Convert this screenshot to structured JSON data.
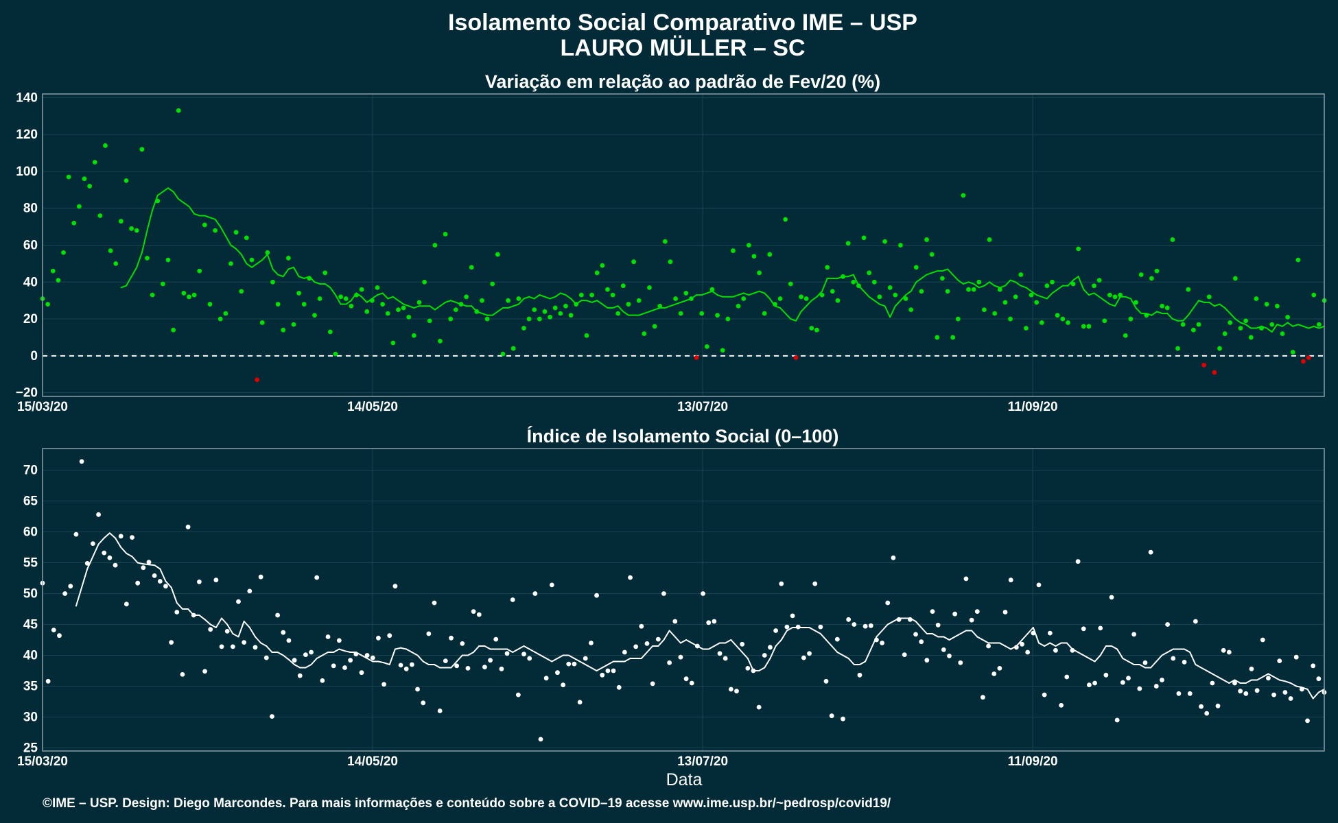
{
  "header": {
    "title_line1": "Isolamento Social Comparativo IME – USP",
    "title_line2": "LAURO MÜLLER – SC"
  },
  "footer": {
    "xlabel": "Data",
    "credit": "©IME – USP. Design: Diego Marcondes. Para mais informações e conteúdo sobre a COVID–19 acesse www.ime.usp.br/~pedrosp/covid19/"
  },
  "colors": {
    "background": "#022a37",
    "grid": "#1b4452",
    "axis": "#8aa0a8",
    "positive": "#00e000",
    "negative": "#e00000",
    "index": "#ffffff"
  },
  "chart_data": [
    {
      "type": "scatter",
      "title": "Variação em relação ao padrão de Fev/20 (%)",
      "xlabel": "",
      "ylabel": "",
      "x_start": "2020-03-15",
      "x_end": "2020-11-03",
      "x_ticks": [
        "15/03/20",
        "14/05/20",
        "13/07/20",
        "11/09/20"
      ],
      "ylim": [
        -22,
        142
      ],
      "y_ticks": [
        -20,
        0,
        20,
        40,
        60,
        80,
        100,
        120,
        140
      ],
      "reference_line": 0,
      "grid": true,
      "series": [
        {
          "role": "daily",
          "values": [
            31,
            28,
            46,
            41,
            56,
            97,
            72,
            81,
            96,
            92,
            105,
            76,
            114,
            57,
            50,
            73,
            95,
            69,
            68,
            112,
            53,
            33,
            84,
            39,
            52,
            14,
            133,
            34,
            32,
            33,
            46,
            71,
            28,
            68,
            20,
            23,
            50,
            67,
            35,
            64,
            52,
            -13,
            18,
            56,
            40,
            28,
            14,
            53,
            17,
            34,
            28,
            42,
            22,
            31,
            45,
            13,
            1,
            32,
            31,
            27,
            33,
            36,
            24,
            30,
            37,
            28,
            23,
            7,
            25,
            26,
            21,
            11,
            29,
            40,
            19,
            60,
            8,
            66,
            20,
            25,
            28,
            32,
            48,
            24,
            30,
            20,
            39,
            55,
            1,
            30,
            4,
            31,
            15,
            20,
            25,
            20,
            24,
            21,
            26,
            23,
            27,
            22,
            28,
            33,
            11,
            33,
            45,
            49,
            36,
            33,
            23,
            38,
            28,
            51,
            30,
            12,
            37,
            16,
            27,
            62,
            51,
            31,
            23,
            34,
            31,
            -1,
            23,
            5,
            36,
            22,
            3,
            20,
            57,
            27,
            31,
            60,
            54,
            45,
            23,
            55,
            28,
            31,
            74,
            39,
            -1,
            32,
            31,
            15,
            14,
            33,
            48,
            35,
            30,
            43,
            61,
            40,
            38,
            64,
            45,
            40,
            32,
            62,
            37,
            33,
            60,
            31,
            25,
            48,
            35,
            63,
            55,
            10,
            42,
            35,
            10,
            20,
            87,
            36,
            36,
            40,
            25,
            63,
            23,
            36,
            29,
            20,
            32,
            44,
            15,
            33,
            29,
            18,
            38,
            40,
            22,
            20,
            18,
            39,
            58,
            16,
            16,
            38,
            41,
            19,
            33,
            32,
            33,
            11,
            20,
            29,
            44,
            22,
            42,
            46,
            27,
            26,
            63,
            4,
            17,
            36,
            14,
            17,
            -5,
            32,
            -9,
            4,
            12,
            18,
            42,
            15,
            19,
            10,
            31,
            15,
            28,
            17,
            27,
            12,
            21,
            2,
            52,
            -3,
            -1,
            33,
            17,
            30
          ],
          "positive_color": "#00e000",
          "negative_color": "#e00000"
        },
        {
          "role": "7-day moving average",
          "values": [
            37,
            38,
            43,
            48,
            56,
            68,
            79,
            87,
            89,
            91,
            89,
            85,
            83,
            81,
            77,
            76,
            76,
            75,
            74,
            70,
            65,
            60,
            58,
            55,
            50,
            48,
            50,
            52,
            55,
            47,
            44,
            43,
            47,
            48,
            43,
            42,
            43,
            40,
            39,
            39,
            37,
            33,
            28,
            28,
            30,
            34,
            32,
            29,
            31,
            33,
            34,
            31,
            32,
            30,
            28,
            27,
            26,
            27,
            27,
            27,
            25,
            27,
            29,
            30,
            29,
            28,
            27,
            27,
            24,
            23,
            22,
            22,
            24,
            26,
            26,
            27,
            28,
            31,
            32,
            31,
            33,
            32,
            31,
            32,
            34,
            33,
            31,
            28,
            30,
            30,
            29,
            30,
            28,
            26,
            26,
            27,
            24,
            22,
            22,
            22,
            23,
            24,
            25,
            26,
            26,
            27,
            28,
            29,
            30,
            31,
            33,
            33,
            34,
            35,
            33,
            32,
            32,
            32,
            33,
            34,
            33,
            34,
            35,
            34,
            31,
            27,
            26,
            23,
            20,
            19,
            24,
            27,
            30,
            32,
            35,
            42,
            42,
            42,
            43,
            43,
            44,
            38,
            35,
            32,
            30,
            28,
            27,
            21,
            27,
            30,
            33,
            35,
            40,
            42,
            44,
            45,
            46,
            46,
            47,
            44,
            41,
            39,
            40,
            39,
            37,
            38,
            40,
            38,
            37,
            38,
            41,
            40,
            38,
            37,
            35,
            33,
            32,
            31,
            34,
            36,
            38,
            38,
            41,
            43,
            36,
            33,
            34,
            32,
            30,
            28,
            27,
            32,
            32,
            31,
            26,
            23,
            23,
            22,
            24,
            23,
            23,
            20,
            19,
            19,
            22,
            26,
            30,
            29,
            29,
            27,
            28,
            26,
            23,
            20,
            18,
            17,
            15,
            15,
            16,
            15,
            13,
            17,
            16,
            18,
            16,
            17,
            16,
            15,
            16,
            15,
            16
          ],
          "color": "#00e000"
        }
      ]
    },
    {
      "type": "scatter",
      "title": "Índice de Isolamento Social (0–100)",
      "xlabel": "Data",
      "ylabel": "",
      "x_start": "2020-03-15",
      "x_end": "2020-11-03",
      "x_ticks": [
        "15/03/20",
        "14/05/20",
        "13/07/20",
        "11/09/20"
      ],
      "ylim": [
        24.5,
        73.5
      ],
      "y_ticks": [
        25,
        30,
        35,
        40,
        45,
        50,
        55,
        60,
        65,
        70
      ],
      "grid": true,
      "series": [
        {
          "role": "daily",
          "values": [
            51.7,
            35.8,
            44.1,
            43.2,
            50.0,
            51.2,
            59.6,
            71.4,
            54.9,
            58.1,
            62.8,
            56.6,
            55.8,
            54.6,
            59.3,
            48.3,
            59.1,
            51.7,
            54.2,
            55.1,
            52.9,
            52.0,
            51.2,
            42.1,
            47.0,
            36.9,
            60.8,
            46.5,
            51.9,
            37.4,
            44.2,
            52.2,
            41.4,
            43.9,
            41.4,
            48.7,
            42.1,
            50.4,
            41.3,
            52.7,
            39.6,
            30.1,
            46.5,
            43.7,
            42.4,
            39.2,
            36.7,
            40.1,
            40.5,
            52.6,
            35.9,
            43.0,
            38.3,
            42.4,
            38.0,
            39.2,
            40.2,
            37.2,
            40.0,
            39.6,
            42.8,
            35.3,
            43.2,
            51.2,
            38.4,
            37.8,
            38.5,
            34.5,
            32.3,
            43.5,
            48.5,
            31.0,
            39.1,
            42.8,
            38.3,
            41.9,
            37.9,
            47.1,
            46.6,
            38.1,
            39.2,
            42.6,
            37.8,
            40.3,
            49.0,
            33.6,
            40.2,
            39.5,
            50.0,
            26.4,
            36.3,
            51.4,
            37.2,
            35.2,
            38.6,
            38.6,
            32.4,
            39.5,
            42.0,
            49.7,
            36.8,
            37.5,
            37.5,
            34.8,
            40.5,
            52.6,
            41.4,
            44.7,
            41.9,
            35.4,
            42.6,
            50.0,
            38.8,
            45.5,
            39.7,
            36.2,
            35.5,
            41.5,
            50.0,
            45.3,
            45.5,
            40.3,
            39.5,
            34.5,
            34.2,
            41.8,
            37.9,
            37.5,
            31.6,
            40.0,
            41.3,
            44.0,
            51.6,
            44.6,
            46.4,
            44.6,
            39.6,
            40.3,
            51.6,
            44.6,
            35.8,
            30.2,
            42.6,
            29.7,
            45.8,
            45.0,
            36.8,
            44.7,
            44.8,
            42.5,
            42.0,
            48.5,
            55.8,
            45.8,
            40.1,
            45.8,
            43.4,
            42.2,
            39.2,
            47.1,
            44.9,
            40.9,
            39.9,
            46.7,
            38.8,
            52.4,
            45.7,
            47.1,
            33.2,
            41.5,
            37.0,
            37.9,
            47.0,
            52.2,
            41.3,
            41.8,
            40.5,
            43.6,
            51.4,
            33.6,
            43.6,
            40.8,
            31.9,
            36.5,
            40.8,
            55.2,
            44.3,
            35.2,
            35.5,
            44.4,
            36.8,
            49.4,
            29.5,
            35.6,
            36.3,
            43.4,
            34.6,
            38.8,
            56.7,
            35.0,
            36.0,
            45.0,
            39.5,
            33.8,
            38.9,
            33.8,
            45.5,
            31.7,
            30.6,
            35.5,
            31.8,
            40.8,
            40.5,
            35.5,
            34.2,
            33.8,
            37.8,
            34.3,
            42.5,
            36.3,
            33.6,
            39.1,
            34.0,
            33.0,
            39.7,
            34.5,
            29.4,
            38.3,
            36.2,
            34.0
          ],
          "color": "#ffffff"
        },
        {
          "role": "7-day moving average",
          "values": [
            48.0,
            51.0,
            54.0,
            56.0,
            58.0,
            59.0,
            59.8,
            59.0,
            57.5,
            56.5,
            56.0,
            55.0,
            54.8,
            54.7,
            54.6,
            54.0,
            52.0,
            51.0,
            48.5,
            47.5,
            47.5,
            46.5,
            46.5,
            45.8,
            45.0,
            44.5,
            46.0,
            45.0,
            43.5,
            43.0,
            45.5,
            44.5,
            43.0,
            42.0,
            41.5,
            40.5,
            40.5,
            40.0,
            39.3,
            38.5,
            38.0,
            38.0,
            38.5,
            39.5,
            40.0,
            40.5,
            40.5,
            41.0,
            40.7,
            40.5,
            40.5,
            40.0,
            39.5,
            39.0,
            39.0,
            38.8,
            38.5,
            41.0,
            41.2,
            41.0,
            40.5,
            40.0,
            39.0,
            38.5,
            38.5,
            38.0,
            38.0,
            38.0,
            39.0,
            40.0,
            40.0,
            40.5,
            41.5,
            41.5,
            41.0,
            41.0,
            41.0,
            41.0,
            40.5,
            41.0,
            41.5,
            41.0,
            40.5,
            40.0,
            39.5,
            39.0,
            39.5,
            40.0,
            40.0,
            39.5,
            39.0,
            38.5,
            38.0,
            37.5,
            38.0,
            38.5,
            39.0,
            39.0,
            39.0,
            39.5,
            39.5,
            39.5,
            40.5,
            41.5,
            41.5,
            42.5,
            44.0,
            43.0,
            42.0,
            42.5,
            42.0,
            41.5,
            41.0,
            41.0,
            41.5,
            42.0,
            42.0,
            42.5,
            41.5,
            40.5,
            39.5,
            37.5,
            37.5,
            38.0,
            39.5,
            41.5,
            42.5,
            44.0,
            44.5,
            44.5,
            44.5,
            44.5,
            44.0,
            43.5,
            42.5,
            41.5,
            40.5,
            40.0,
            39.5,
            38.5,
            38.5,
            39.0,
            41.0,
            43.0,
            44.0,
            45.0,
            45.5,
            46.0,
            46.0,
            46.0,
            45.5,
            44.5,
            43.5,
            43.5,
            43.0,
            43.0,
            42.5,
            43.0,
            43.5,
            44.0,
            44.0,
            43.0,
            42.5,
            42.0,
            42.0,
            42.0,
            41.5,
            41.0,
            41.5,
            42.5,
            43.5,
            44.5,
            42.0,
            41.5,
            42.0,
            41.5,
            42.0,
            42.0,
            41.0,
            40.5,
            40.0,
            39.5,
            39.0,
            40.0,
            41.5,
            41.5,
            41.0,
            39.5,
            39.0,
            38.5,
            38.5,
            38.0,
            38.0,
            39.0,
            40.0,
            40.5,
            41.0,
            41.0,
            41.0,
            40.5,
            38.5,
            38.0,
            37.5,
            37.0,
            36.5,
            36.0,
            35.5,
            36.0,
            35.5,
            35.5,
            36.0,
            36.0,
            36.5,
            37.0,
            36.5,
            36.0,
            35.8,
            35.5,
            35.0,
            34.8,
            34.5,
            33.0,
            34.0,
            34.5
          ],
          "color": "#ffffff"
        }
      ]
    }
  ]
}
